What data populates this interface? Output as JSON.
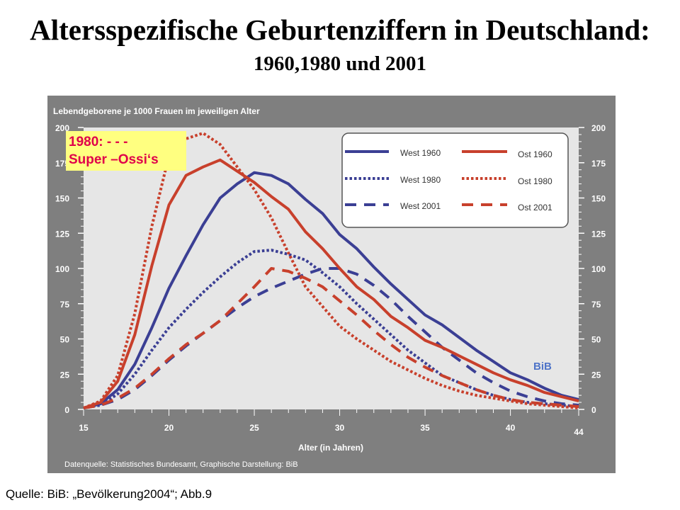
{
  "title": "Altersspezifische Geburtenziffern in Deutschland:",
  "subtitle": "1960,1980 und 2001",
  "source": "Quelle: BiB: „Bevölkerung2004“; Abb.9",
  "note": {
    "line1": "1980:  - - -",
    "line2": "Super –Ossi‘s"
  },
  "colors": {
    "west": "#3b3f94",
    "ost": "#c8402c",
    "panel": "#7f7f7f",
    "plot": "#e6e6e6",
    "note_bg": "#ffff80",
    "note_text": "#e0004a",
    "bib": "#4f74c8"
  },
  "chart_data": {
    "type": "line",
    "ylabel": "Lebendgeborene je 1000 Frauen  im jeweiligen Alter",
    "xlabel": "Alter (in Jahren)",
    "datasource": "Datenquelle: Statistisches Bundesamt, Graphische Darstellung: BiB",
    "watermark": "BiB",
    "xlim": [
      15,
      44
    ],
    "ylim": [
      0,
      200
    ],
    "x_ticks": [
      15,
      20,
      25,
      30,
      35,
      40,
      44
    ],
    "y_ticks": [
      0,
      25,
      50,
      75,
      100,
      125,
      150,
      175,
      200
    ],
    "grid": false,
    "legend_position": "top-right",
    "series": [
      {
        "name": "West 1960",
        "group": "west",
        "style": "solid",
        "x": [
          15,
          16,
          17,
          18,
          19,
          20,
          21,
          22,
          23,
          24,
          25,
          26,
          27,
          28,
          29,
          30,
          31,
          32,
          33,
          34,
          35,
          36,
          37,
          38,
          39,
          40,
          41,
          42,
          43,
          44
        ],
        "values": [
          1,
          4,
          14,
          32,
          58,
          86,
          109,
          131,
          150,
          160,
          168,
          166,
          160,
          149,
          139,
          124,
          114,
          101,
          89,
          78,
          67,
          60,
          51,
          42,
          34,
          26,
          21,
          15,
          10,
          7
        ]
      },
      {
        "name": "West 1980",
        "group": "west",
        "style": "dotted",
        "x": [
          15,
          16,
          17,
          18,
          19,
          20,
          21,
          22,
          23,
          24,
          25,
          26,
          27,
          28,
          29,
          30,
          31,
          32,
          33,
          34,
          35,
          36,
          37,
          38,
          39,
          40,
          41,
          42,
          43,
          44
        ],
        "values": [
          1,
          3,
          11,
          25,
          42,
          58,
          71,
          83,
          94,
          104,
          112,
          113,
          110,
          106,
          97,
          87,
          75,
          64,
          53,
          42,
          33,
          24,
          19,
          14,
          10,
          7,
          5,
          4,
          3,
          2
        ]
      },
      {
        "name": "West 2001",
        "group": "west",
        "style": "dashed",
        "x": [
          15,
          16,
          17,
          18,
          19,
          20,
          21,
          22,
          23,
          24,
          25,
          26,
          27,
          28,
          29,
          30,
          31,
          32,
          33,
          34,
          35,
          36,
          37,
          38,
          39,
          40,
          41,
          42,
          43,
          44
        ],
        "values": [
          1,
          3,
          7,
          14,
          24,
          35,
          45,
          54,
          63,
          72,
          80,
          86,
          91,
          96,
          100,
          100,
          96,
          88,
          78,
          66,
          55,
          44,
          35,
          26,
          19,
          13,
          9,
          6,
          4,
          3
        ]
      },
      {
        "name": "Ost 1960",
        "group": "ost",
        "style": "solid",
        "x": [
          15,
          16,
          17,
          18,
          19,
          20,
          21,
          22,
          23,
          24,
          25,
          26,
          27,
          28,
          29,
          30,
          31,
          32,
          33,
          34,
          35,
          36,
          37,
          38,
          39,
          40,
          41,
          42,
          43,
          44
        ],
        "values": [
          1,
          5,
          20,
          53,
          102,
          145,
          166,
          172,
          177,
          169,
          161,
          151,
          142,
          126,
          114,
          100,
          87,
          78,
          66,
          58,
          49,
          44,
          38,
          32,
          26,
          21,
          17,
          12,
          9,
          6
        ]
      },
      {
        "name": "Ost 1980",
        "group": "ost",
        "style": "dotted",
        "x": [
          15,
          16,
          17,
          18,
          19,
          20,
          21,
          22,
          23,
          24,
          25,
          26,
          27,
          28,
          29,
          30,
          31,
          32,
          33,
          34,
          35,
          36,
          37,
          38,
          39,
          40,
          41,
          42,
          43,
          44
        ],
        "values": [
          1,
          6,
          24,
          68,
          130,
          180,
          192,
          196,
          188,
          172,
          156,
          136,
          111,
          87,
          73,
          59,
          50,
          42,
          34,
          28,
          22,
          17,
          13,
          10,
          8,
          6,
          4,
          3,
          2,
          1
        ]
      },
      {
        "name": "Ost 2001",
        "group": "ost",
        "style": "dashed",
        "x": [
          15,
          16,
          17,
          18,
          19,
          20,
          21,
          22,
          23,
          24,
          25,
          26,
          27,
          28,
          29,
          30,
          31,
          32,
          33,
          34,
          35,
          36,
          37,
          38,
          39,
          40,
          41,
          42,
          43,
          44
        ],
        "values": [
          1,
          3,
          8,
          15,
          25,
          36,
          46,
          54,
          63,
          75,
          87,
          100,
          98,
          93,
          87,
          77,
          67,
          56,
          46,
          37,
          30,
          24,
          19,
          14,
          10,
          7,
          5,
          4,
          3,
          2
        ]
      }
    ]
  }
}
